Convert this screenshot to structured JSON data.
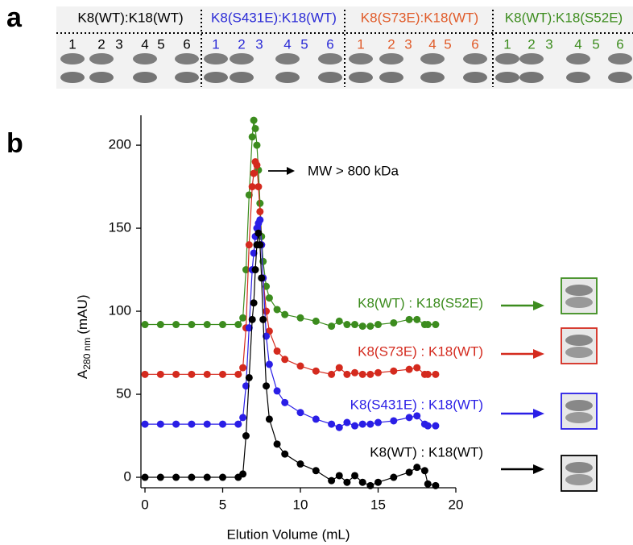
{
  "panels": [
    "a",
    "b"
  ],
  "gel": {
    "groups": [
      {
        "label": "K8(WT):K18(WT)",
        "color": "#000000",
        "lanes": [
          "1",
          "2",
          "3",
          "4",
          "5",
          "6"
        ]
      },
      {
        "label": "K8(S431E):K18(WT)",
        "color": "#2a2ad6",
        "lanes": [
          "1",
          "2",
          "3",
          "4",
          "5",
          "6"
        ]
      },
      {
        "label": "K8(S73E):K18(WT)",
        "color": "#e05a28",
        "lanes": [
          "1",
          "2",
          "3",
          "4",
          "5",
          "6"
        ]
      },
      {
        "label": "K8(WT):K18(S52E)",
        "color": "#3c8c1e",
        "lanes": [
          "1",
          "2",
          "3",
          "4",
          "5",
          "6"
        ]
      }
    ]
  },
  "chart_data": {
    "type": "line",
    "x_label": "Elution Volume (mL)",
    "y_label": {
      "main": "A",
      "subscript": "280 nm",
      "unit": "(mAU)"
    },
    "annotation": "MW > 800 kDa",
    "xlim": [
      -0.26,
      20
    ],
    "ylim": [
      -6.3,
      218
    ],
    "xticks": [
      0,
      5,
      10,
      15,
      20
    ],
    "yticks": [
      0,
      50,
      100,
      150,
      200
    ],
    "x": [
      0,
      1,
      2,
      3,
      4,
      5,
      6,
      6.3,
      6.5,
      6.7,
      6.9,
      7.0,
      7.1,
      7.2,
      7.3,
      7.4,
      7.5,
      7.6,
      7.8,
      8.0,
      8.5,
      9,
      10,
      11,
      12,
      12.5,
      13,
      13.5,
      14,
      14.5,
      15,
      16,
      17,
      17.5,
      18,
      18.2,
      18.7
    ],
    "series": [
      {
        "name": "K8(WT) : K18(S52E)",
        "color": "#3c8c1e",
        "values": [
          92,
          92,
          92,
          92,
          92,
          92,
          92,
          96,
          125,
          170,
          205,
          215,
          210,
          200,
          185,
          165,
          145,
          130,
          115,
          108,
          101,
          98,
          96,
          94,
          91,
          94,
          92,
          92,
          91,
          91,
          92,
          93,
          95,
          95,
          92,
          92,
          92
        ]
      },
      {
        "name": "K8(S73E) : K18(WT)",
        "color": "#d42a1e",
        "values": [
          62,
          62,
          62,
          62,
          62,
          62,
          62,
          66,
          90,
          140,
          175,
          183,
          190,
          188,
          175,
          160,
          140,
          120,
          100,
          88,
          76,
          71,
          67,
          64,
          62,
          66,
          62,
          63,
          62,
          62,
          63,
          64,
          65,
          66,
          62,
          62,
          62
        ]
      },
      {
        "name": "K8(S431E) : K18(WT)",
        "color": "#2a1ee6",
        "values": [
          32,
          32,
          32,
          32,
          32,
          32,
          32,
          36,
          55,
          90,
          125,
          135,
          145,
          150,
          153,
          155,
          140,
          120,
          85,
          68,
          52,
          45,
          39,
          35,
          32,
          30,
          33,
          31,
          32,
          32,
          33,
          34,
          36,
          37,
          32,
          31,
          31
        ]
      },
      {
        "name": "K8(WT) : K18(WT)",
        "color": "#000000",
        "values": [
          0,
          0,
          0,
          0,
          0,
          0,
          0,
          2,
          25,
          60,
          95,
          105,
          125,
          140,
          147,
          140,
          120,
          95,
          55,
          35,
          20,
          14,
          8,
          4,
          -2,
          1,
          -3,
          1,
          -3,
          -5,
          -3,
          0,
          3,
          6,
          4,
          -4,
          -5
        ]
      }
    ]
  }
}
